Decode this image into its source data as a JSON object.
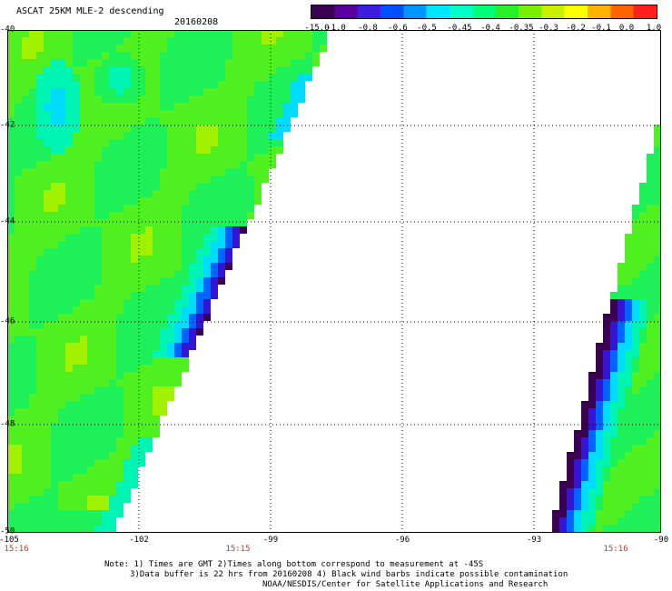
{
  "header": {
    "title": "ASCAT 25KM MLE-2 descending",
    "date": "20160208"
  },
  "colorbar": {
    "colors": [
      "#3c0050",
      "#5a00a0",
      "#3c1ee0",
      "#0050ff",
      "#0096ff",
      "#00e6ff",
      "#00ffc8",
      "#00ff78",
      "#28f028",
      "#78f000",
      "#c8f000",
      "#ffff00",
      "#ffb400",
      "#ff6400",
      "#ff1e1e"
    ],
    "ticks": [
      "-15.0",
      "-1.0",
      "-0.8",
      "-0.6",
      "-0.5",
      "-0.45",
      "-0.4",
      "-0.35",
      "-0.3",
      "-0.2",
      "-0.1",
      "0.0",
      "1.0"
    ]
  },
  "map": {
    "lat_labels": [
      "-40",
      "-42",
      "-44",
      "-46",
      "-48",
      "-50"
    ],
    "lon_labels": [
      "-105",
      "-102",
      "-99",
      "-96",
      "-93",
      "-90"
    ],
    "times": [
      "15:16",
      "15:15",
      "15:16"
    ],
    "lat_range": [
      -50,
      -40
    ],
    "lon_range": [
      -105,
      -90
    ]
  },
  "notes": [
    "Note: 1) Times are GMT 2)Times along bottom correspond to measurement at -45S",
    "3)Data buffer is 22 hrs from 20160208 4) Black wind barbs indicate possible contamination",
    "NOAA/NESDIS/Center for Satellite Applications and Research"
  ]
}
